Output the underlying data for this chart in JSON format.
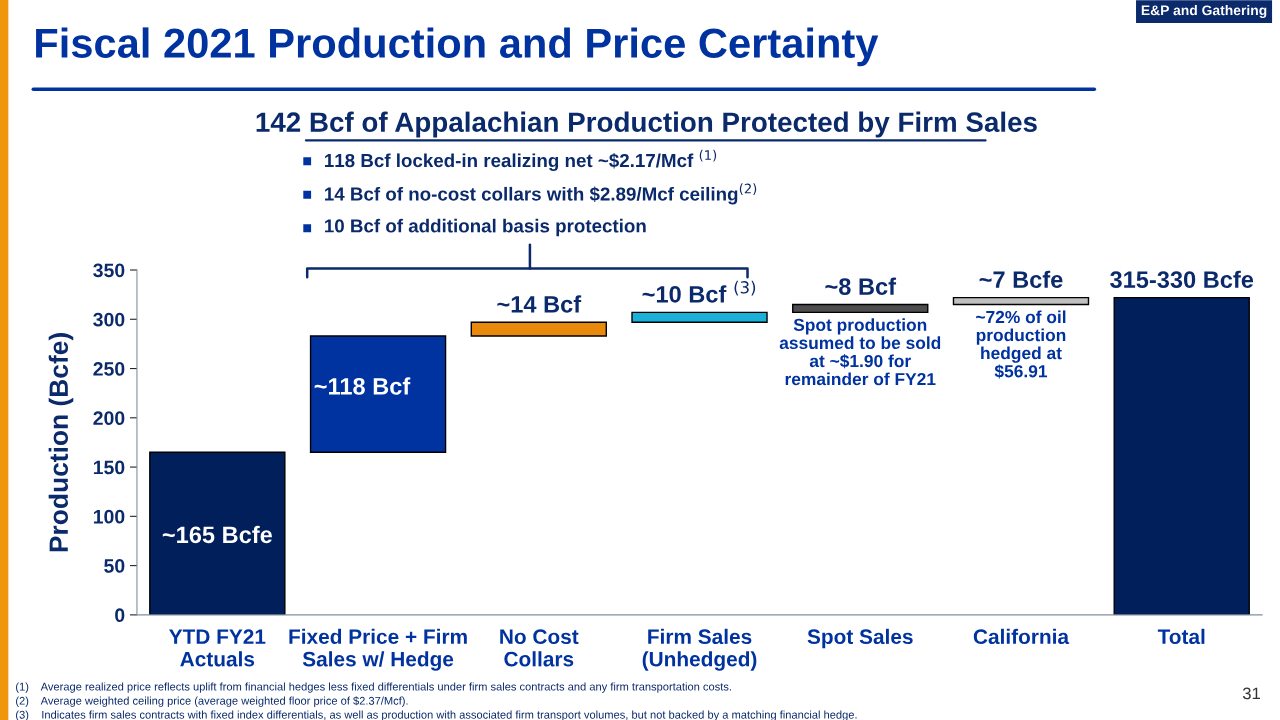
{
  "chart_data": {
    "type": "bar",
    "title": "Fiscal 2021 Production and Price Certainty",
    "subtitle": "142 Bcf of Appalachian Production Protected by Firm Sales",
    "ylabel": "Production (Bcfe)",
    "categories": [
      "YTD FY21\nActuals",
      "Fixed Price + Firm\nSales w/ Hedge",
      "No Cost\nCollars",
      "Firm Sales\n(Unhedged)",
      "Spot Sales",
      "California",
      "Total"
    ],
    "values": [
      165,
      118,
      14,
      10,
      8,
      7,
      322
    ],
    "base": [
      0,
      165,
      283,
      297,
      307,
      315,
      0
    ],
    "colors": [
      "#001f5b",
      "#0033a0",
      "#e8890c",
      "#1ab0d8",
      "#4d4d4d",
      "#c0c0c0",
      "#001f5b"
    ],
    "value_labels": [
      "~165 Bcfe",
      "~118 Bcf",
      "~14 Bcf",
      "~10 Bcf $^{(3)}$",
      "~8 Bcf",
      "~7 Bcfe",
      "315-330 Bcfe"
    ],
    "ylim": [
      0,
      350
    ],
    "yticks": [
      0,
      50,
      100,
      150,
      200,
      250,
      300,
      350
    ],
    "grid": false,
    "annotations": [
      "E&P and Gathering",
      "118 Bcf locked-in realizing net ~$2.17/Mcf $^{(1)}$",
      "14 Bcf of no-cost collars with $2.89/Mcf ceiling$^{(2)}$",
      "10 Bcf of additional basis protection",
      {
        "text": "Spot production\nassumed to be sold\nat ~$1.90 for\nremainder of FY21",
        "x": "Spot Sales",
        "y": 307
      },
      {
        "text": "~72% of oil\nproduction\nhedged at\n$56.91",
        "x": "California",
        "y": 315
      },
      "(1)    Average realized price reflects uplift from financial hedges less fixed differentials under firm sales contracts and any firm transportation costs.",
      "(2)    Average weighted ceiling price (average weighted floor price of $2.37/Mcf).",
      "(3)    Indicates firm sales contracts with fixed index differentials, as well as production with associated firm transport volumes, but not backed by a matching financial hedge.",
      "31"
    ]
  }
}
